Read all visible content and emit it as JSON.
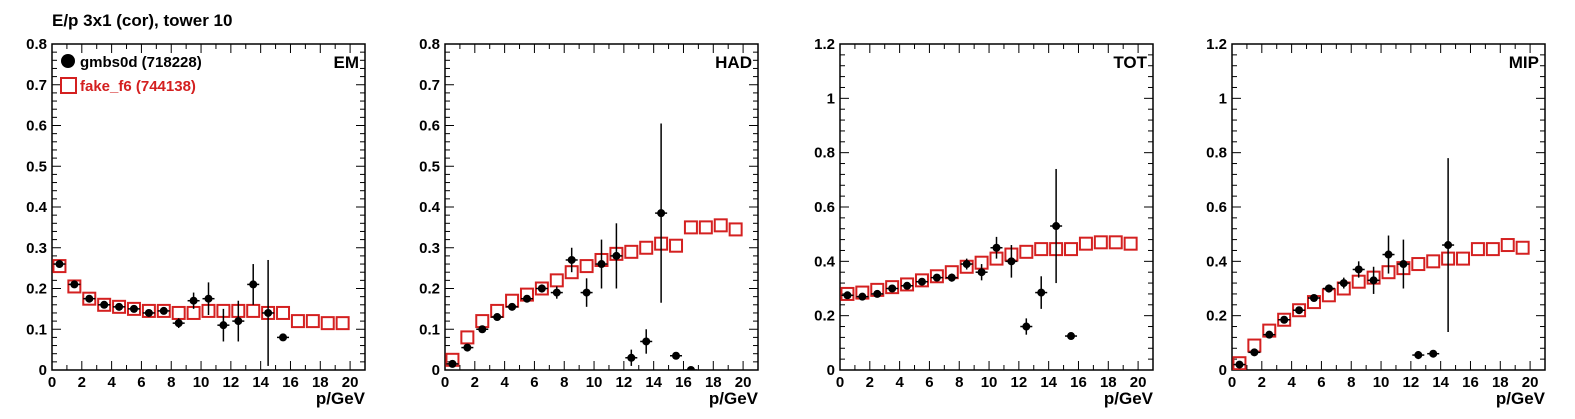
{
  "title": "E/p 3x1 (cor), tower 10",
  "legend": [
    {
      "name": "gmbs0d (718228)",
      "color": "#000000",
      "marker": "filled-circle"
    },
    {
      "name": "fake_f6 (744138)",
      "color": "#d42020",
      "marker": "open-square"
    }
  ],
  "chart_data": [
    {
      "type": "scatter",
      "label": "EM",
      "xlabel": "p/GeV",
      "xlim": [
        0,
        21
      ],
      "ylim": [
        0,
        0.8
      ],
      "xticks": [
        0,
        2,
        4,
        6,
        8,
        10,
        12,
        14,
        16,
        18,
        20
      ],
      "yticks": [
        0,
        0.1,
        0.2,
        0.3,
        0.4,
        0.5,
        0.6,
        0.7,
        0.8
      ],
      "series": [
        {
          "name": "gmbs0d (718228)",
          "x": [
            0.5,
            1.5,
            2.5,
            3.5,
            4.5,
            5.5,
            6.5,
            7.5,
            8.5,
            9.5,
            10.5,
            11.5,
            12.5,
            13.5,
            14.5,
            15.5
          ],
          "y": [
            0.26,
            0.21,
            0.175,
            0.16,
            0.155,
            0.15,
            0.14,
            0.145,
            0.115,
            0.17,
            0.175,
            0.11,
            0.12,
            0.21,
            0.14,
            0.08
          ],
          "yerr": [
            0.005,
            0.004,
            0.005,
            0.005,
            0.005,
            0.006,
            0.007,
            0.008,
            0.012,
            0.02,
            0.04,
            0.04,
            0.05,
            0.05,
            0.13,
            0.005
          ]
        },
        {
          "name": "fake_f6 (744138)",
          "x": [
            0.5,
            1.5,
            2.5,
            3.5,
            4.5,
            5.5,
            6.5,
            7.5,
            8.5,
            9.5,
            10.5,
            11.5,
            12.5,
            13.5,
            14.5,
            15.5,
            16.5,
            17.5,
            18.5,
            19.5
          ],
          "y": [
            0.255,
            0.205,
            0.175,
            0.16,
            0.155,
            0.15,
            0.145,
            0.145,
            0.14,
            0.14,
            0.145,
            0.145,
            0.145,
            0.145,
            0.14,
            0.14,
            0.12,
            0.12,
            0.115,
            0.115
          ]
        }
      ]
    },
    {
      "type": "scatter",
      "label": "HAD",
      "xlabel": "p/GeV",
      "xlim": [
        0,
        21
      ],
      "ylim": [
        0,
        0.8
      ],
      "xticks": [
        0,
        2,
        4,
        6,
        8,
        10,
        12,
        14,
        16,
        18,
        20
      ],
      "yticks": [
        0,
        0.1,
        0.2,
        0.3,
        0.4,
        0.5,
        0.6,
        0.7,
        0.8
      ],
      "series": [
        {
          "name": "gmbs0d (718228)",
          "x": [
            0.5,
            1.5,
            2.5,
            3.5,
            4.5,
            5.5,
            6.5,
            7.5,
            8.5,
            9.5,
            10.5,
            11.5,
            12.5,
            13.5,
            14.5,
            15.5,
            16.5
          ],
          "y": [
            0.015,
            0.055,
            0.1,
            0.13,
            0.155,
            0.175,
            0.2,
            0.19,
            0.27,
            0.19,
            0.26,
            0.28,
            0.03,
            0.07,
            0.385,
            0.035,
            0.0
          ],
          "yerr": [
            0.004,
            0.005,
            0.005,
            0.006,
            0.006,
            0.008,
            0.01,
            0.015,
            0.03,
            0.035,
            0.06,
            0.08,
            0.02,
            0.03,
            0.22,
            0.005,
            0.005
          ]
        },
        {
          "name": "fake_f6 (744138)",
          "x": [
            0.5,
            1.5,
            2.5,
            3.5,
            4.5,
            5.5,
            6.5,
            7.5,
            8.5,
            9.5,
            10.5,
            11.5,
            12.5,
            13.5,
            14.5,
            15.5,
            16.5,
            17.5,
            18.5,
            19.5
          ],
          "y": [
            0.025,
            0.08,
            0.12,
            0.145,
            0.17,
            0.185,
            0.2,
            0.22,
            0.24,
            0.255,
            0.27,
            0.285,
            0.29,
            0.3,
            0.31,
            0.305,
            0.35,
            0.35,
            0.355,
            0.345
          ]
        }
      ]
    },
    {
      "type": "scatter",
      "label": "TOT",
      "xlabel": "p/GeV",
      "xlim": [
        0,
        21
      ],
      "ylim": [
        0,
        1.2
      ],
      "xticks": [
        0,
        2,
        4,
        6,
        8,
        10,
        12,
        14,
        16,
        18,
        20
      ],
      "yticks": [
        0,
        0.2,
        0.4,
        0.6,
        0.8,
        1,
        1.2
      ],
      "series": [
        {
          "name": "gmbs0d (718228)",
          "x": [
            0.5,
            1.5,
            2.5,
            3.5,
            4.5,
            5.5,
            6.5,
            7.5,
            8.5,
            9.5,
            10.5,
            11.5,
            12.5,
            13.5,
            14.5,
            15.5
          ],
          "y": [
            0.275,
            0.27,
            0.28,
            0.3,
            0.31,
            0.325,
            0.34,
            0.34,
            0.39,
            0.36,
            0.45,
            0.4,
            0.16,
            0.285,
            0.53,
            0.125
          ],
          "yerr": [
            0.006,
            0.006,
            0.006,
            0.006,
            0.007,
            0.008,
            0.01,
            0.015,
            0.02,
            0.03,
            0.04,
            0.06,
            0.03,
            0.06,
            0.21,
            0.005
          ]
        },
        {
          "name": "fake_f6 (744138)",
          "x": [
            0.5,
            1.5,
            2.5,
            3.5,
            4.5,
            5.5,
            6.5,
            7.5,
            8.5,
            9.5,
            10.5,
            11.5,
            12.5,
            13.5,
            14.5,
            15.5,
            16.5,
            17.5,
            18.5,
            19.5
          ],
          "y": [
            0.28,
            0.285,
            0.295,
            0.305,
            0.315,
            0.33,
            0.345,
            0.36,
            0.38,
            0.395,
            0.41,
            0.425,
            0.435,
            0.445,
            0.445,
            0.445,
            0.465,
            0.47,
            0.47,
            0.465
          ]
        }
      ]
    },
    {
      "type": "scatter",
      "label": "MIP",
      "xlabel": "p/GeV",
      "xlim": [
        0,
        21
      ],
      "ylim": [
        0,
        1.2
      ],
      "xticks": [
        0,
        2,
        4,
        6,
        8,
        10,
        12,
        14,
        16,
        18,
        20
      ],
      "yticks": [
        0,
        0.2,
        0.4,
        0.6,
        0.8,
        1,
        1.2
      ],
      "series": [
        {
          "name": "gmbs0d (718228)",
          "x": [
            0.5,
            1.5,
            2.5,
            3.5,
            4.5,
            5.5,
            6.5,
            7.5,
            8.5,
            9.5,
            10.5,
            11.5,
            12.5,
            13.5,
            14.5
          ],
          "y": [
            0.02,
            0.065,
            0.13,
            0.185,
            0.22,
            0.265,
            0.3,
            0.32,
            0.37,
            0.33,
            0.425,
            0.39,
            0.055,
            0.06,
            0.46
          ],
          "yerr": [
            0.005,
            0.006,
            0.006,
            0.008,
            0.01,
            0.012,
            0.015,
            0.02,
            0.03,
            0.05,
            0.07,
            0.09,
            0.015,
            0.01,
            0.32
          ]
        },
        {
          "name": "fake_f6 (744138)",
          "x": [
            0.5,
            1.5,
            2.5,
            3.5,
            4.5,
            5.5,
            6.5,
            7.5,
            8.5,
            9.5,
            10.5,
            11.5,
            12.5,
            13.5,
            14.5,
            15.5,
            16.5,
            17.5,
            18.5,
            19.5
          ],
          "y": [
            0.025,
            0.09,
            0.145,
            0.185,
            0.22,
            0.25,
            0.275,
            0.3,
            0.325,
            0.34,
            0.36,
            0.375,
            0.39,
            0.4,
            0.41,
            0.41,
            0.445,
            0.445,
            0.46,
            0.45
          ]
        }
      ]
    }
  ]
}
